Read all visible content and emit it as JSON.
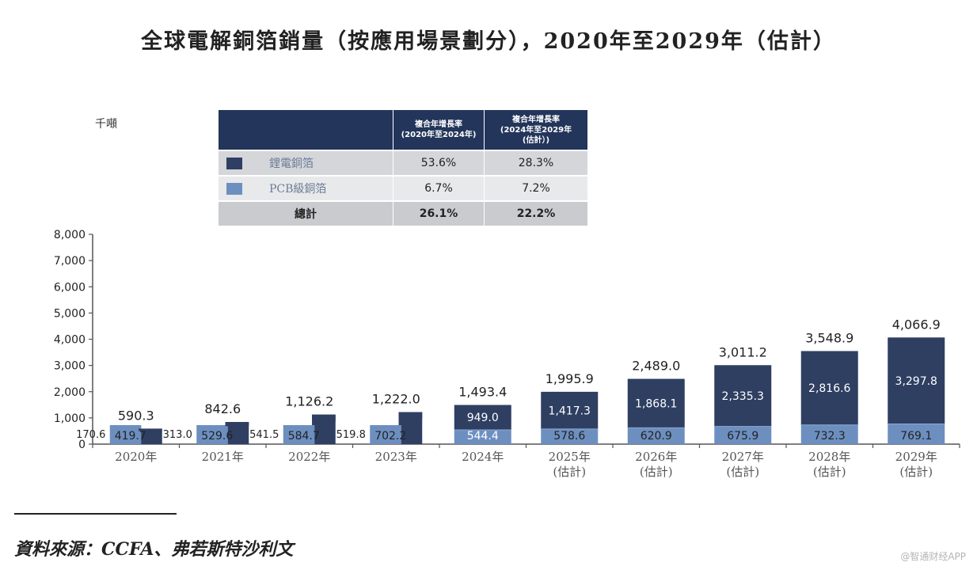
{
  "title": "全球電解銅箔銷量（按應用場景劃分），2020年至2029年（估計）",
  "unit_label": "千噸",
  "cagr_table": {
    "col1_header": [
      "複合年增長率",
      "(2020年至2024年)"
    ],
    "col2_header": [
      "複合年增長率",
      "(2024年至2029年",
      "(估計）)"
    ],
    "rows": [
      {
        "label": "鋰電銅箔",
        "v1": "53.6%",
        "v2": "28.3%",
        "swatch": "dark"
      },
      {
        "label": "PCB級銅箔",
        "v1": "6.7%",
        "v2": "7.2%",
        "swatch": "light"
      },
      {
        "label": "總計",
        "v1": "26.1%",
        "v2": "22.2%",
        "swatch": ""
      }
    ]
  },
  "colors": {
    "lithium": "#2f3f62",
    "pcb": "#6d8fc0",
    "axis": "#555555"
  },
  "source": "資料來源：CCFA、弗若斯特沙利文",
  "watermark": "@智通财经APP",
  "chart_data": {
    "type": "bar",
    "stacked": true,
    "categories": [
      [
        "2020年"
      ],
      [
        "2021年"
      ],
      [
        "2022年"
      ],
      [
        "2023年"
      ],
      [
        "2024年"
      ],
      [
        "2025年",
        "(估計)"
      ],
      [
        "2026年",
        "(估計)"
      ],
      [
        "2027年",
        "(估計)"
      ],
      [
        "2028年",
        "(估計)"
      ],
      [
        "2029年",
        "(估計)"
      ]
    ],
    "series": [
      {
        "name": "PCB級銅箔",
        "color": "#6d8fc0",
        "values": [
          419.7,
          529.6,
          584.7,
          702.2,
          544.4,
          578.6,
          620.9,
          675.9,
          732.3,
          769.1
        ],
        "labels": [
          "419.7",
          "529.6",
          "584.7",
          "702.2",
          "544.4",
          "578.6",
          "620.9",
          "675.9",
          "732.3",
          "769.1"
        ]
      },
      {
        "name": "鋰電銅箔",
        "color": "#2f3f62",
        "values": [
          170.6,
          313.0,
          541.5,
          519.8,
          949.0,
          1417.3,
          1868.1,
          2335.3,
          2816.6,
          3297.8
        ],
        "labels": [
          "170.6",
          "313.0",
          "541.5",
          "519.8",
          "949.0",
          "1,417.3",
          "1,868.1",
          "2,335.3",
          "2,816.6",
          "3,297.8"
        ]
      }
    ],
    "totals": [
      590.3,
      842.6,
      1126.2,
      1222.0,
      1493.4,
      1995.9,
      2489.0,
      3011.2,
      3548.9,
      4066.9
    ],
    "total_labels": [
      "590.3",
      "842.6",
      "1,126.2",
      "1,222.0",
      "1,493.4",
      "1,995.9",
      "2,489.0",
      "3,011.2",
      "3,548.9",
      "4,066.9"
    ],
    "ylim": [
      0,
      8000
    ],
    "yticks": [
      0,
      1000,
      2000,
      3000,
      4000,
      5000,
      6000,
      7000,
      8000
    ],
    "ytick_labels": [
      "0",
      "1,000",
      "2,000",
      "3,000",
      "4,000",
      "5,000",
      "6,000",
      "7,000",
      "8,000"
    ],
    "xlabel": "",
    "ylabel": ""
  }
}
